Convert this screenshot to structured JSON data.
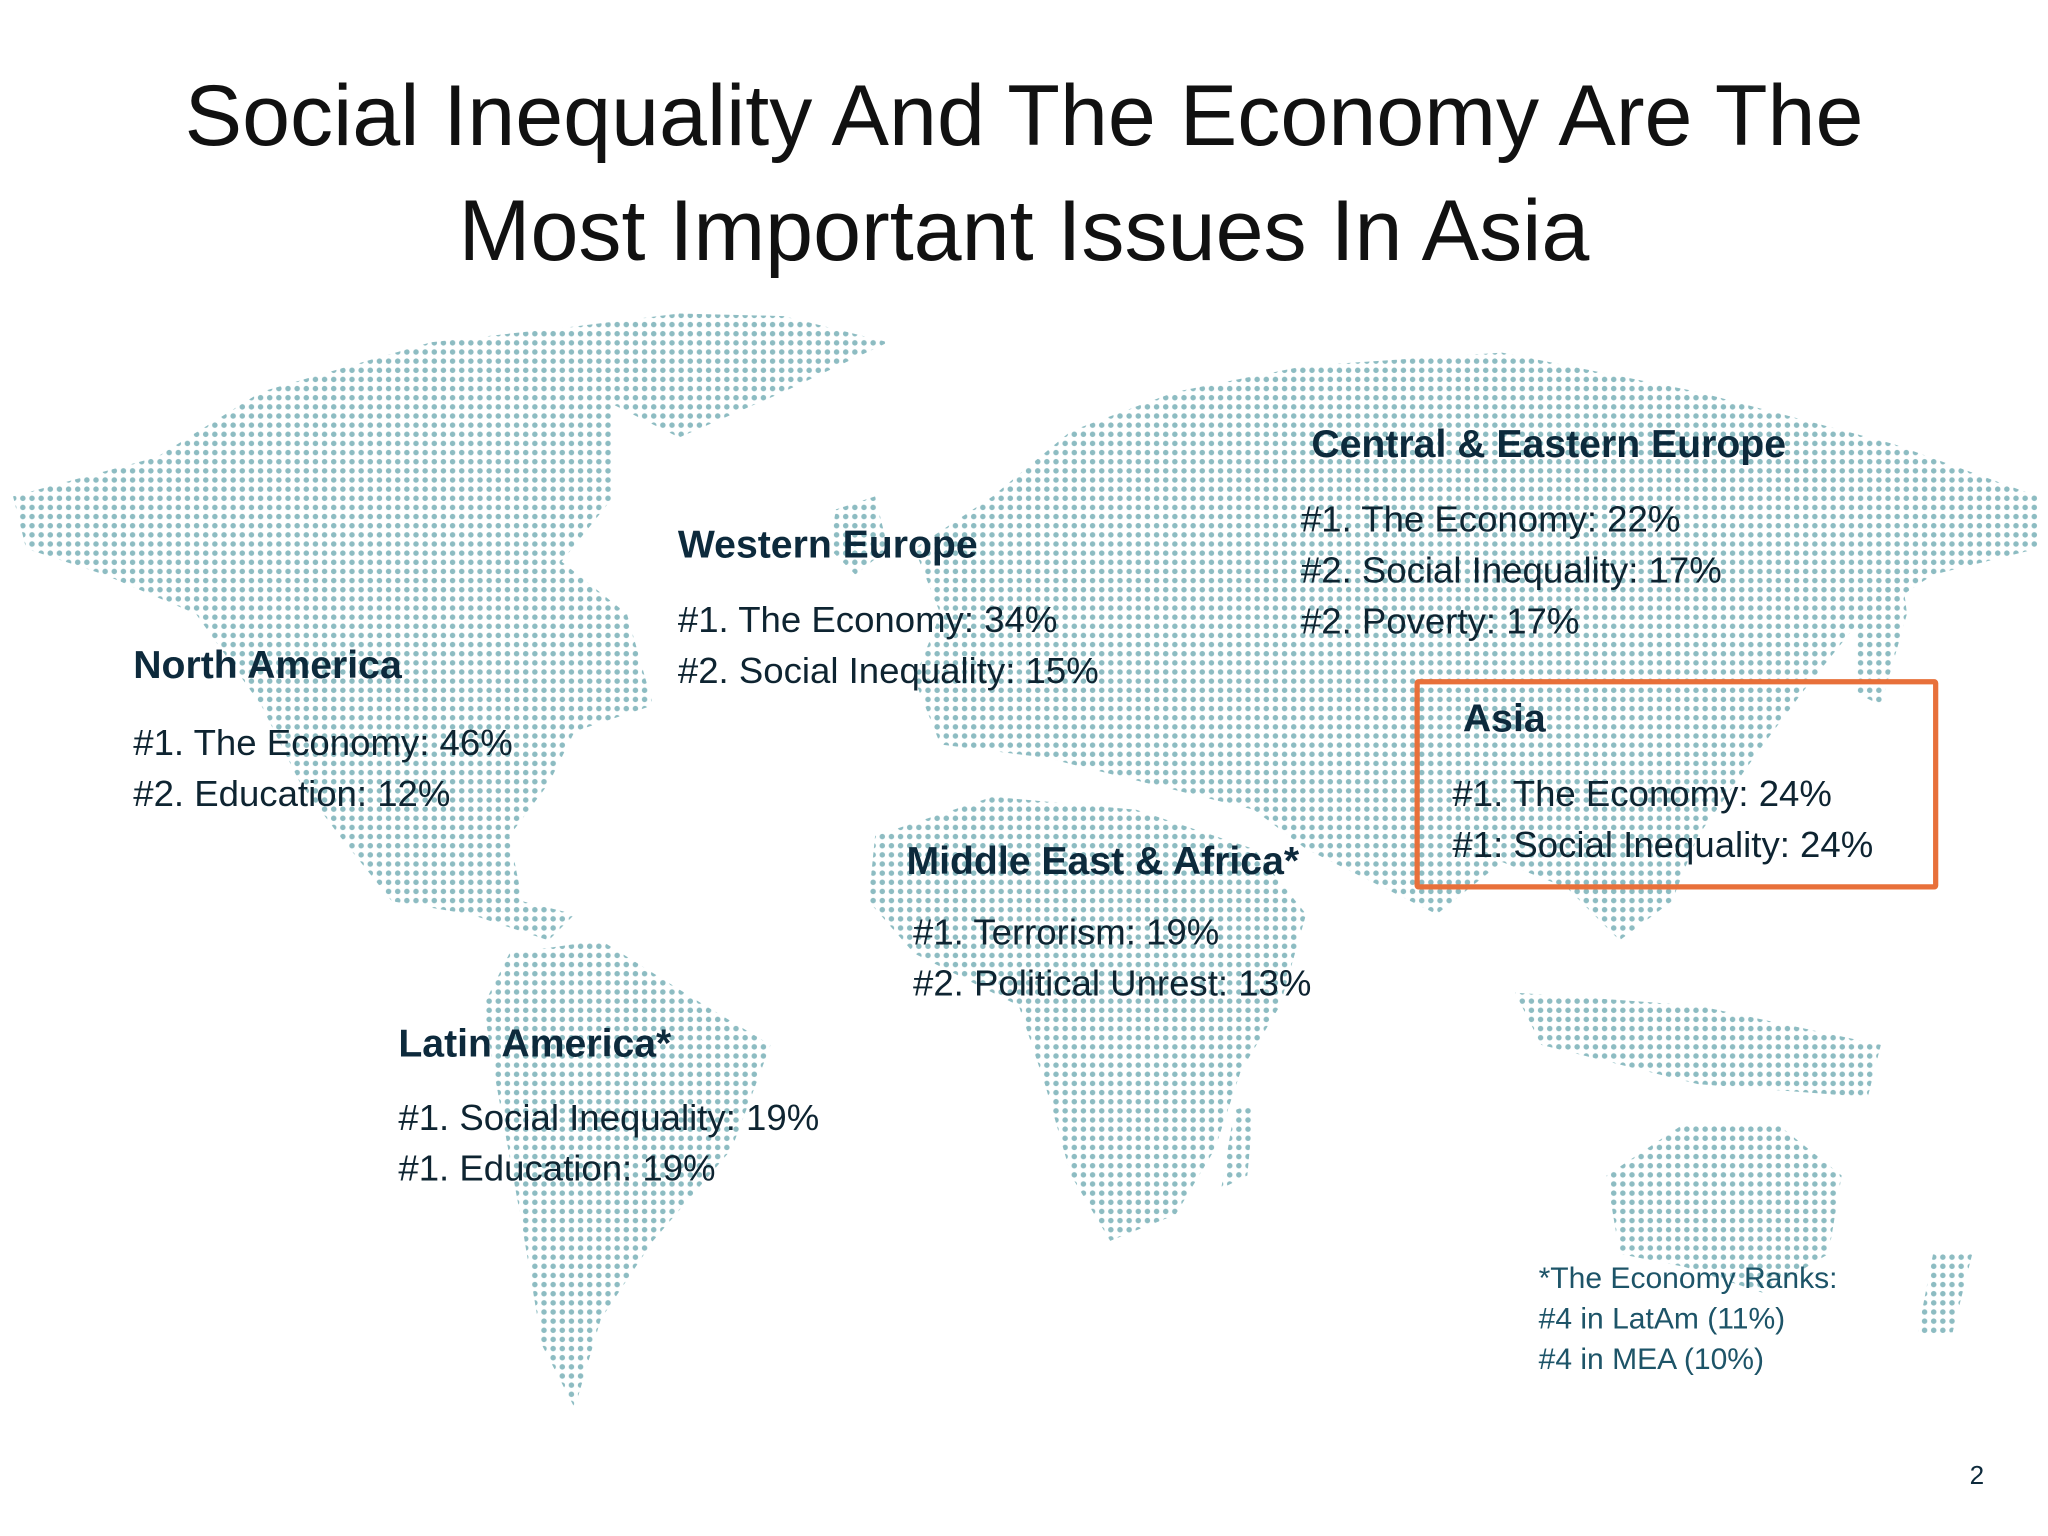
{
  "title": "Social Inequality And The Economy Are The Most Important Issues In Asia",
  "regions": [
    {
      "name": "North America",
      "items": [
        "#1. The Economy: 46%",
        "#2. Education: 12%"
      ]
    },
    {
      "name": "Western Europe",
      "items": [
        "#1. The Economy: 34%",
        "#2. Social Inequality: 15%"
      ]
    },
    {
      "name": "Central & Eastern Europe",
      "items": [
        "#1. The Economy: 22%",
        "#2. Social Inequality: 17%",
        "#2. Poverty: 17%"
      ]
    },
    {
      "name": "Asia",
      "items": [
        "#1. The Economy: 24%",
        "#1: Social Inequality: 24%"
      ]
    },
    {
      "name": "Middle East & Africa*",
      "items": [
        "#1. Terrorism: 19%",
        "#2. Political Unrest: 13%"
      ]
    },
    {
      "name": "Latin America*",
      "items": [
        "#1. Social Inequality: 19%",
        "#1. Education: 19%"
      ]
    }
  ],
  "footnote": [
    "*The Economy Ranks:",
    "#4 in LatAm (11%)",
    "#4 in MEA (10%)"
  ],
  "page_number": "2"
}
